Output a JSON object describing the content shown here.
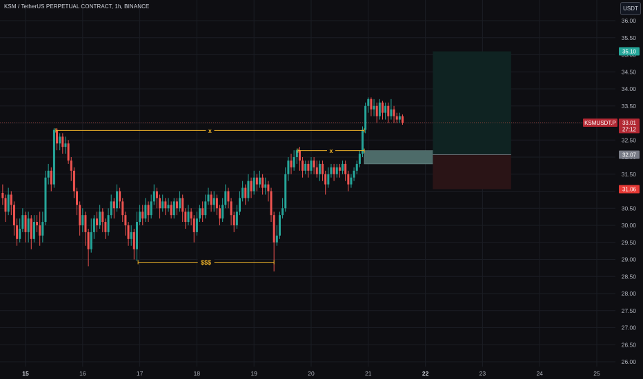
{
  "header": {
    "title": "KSM / TetherUS PERPETUAL CONTRACT, 1h, BINANCE",
    "currency_button": "USDT"
  },
  "colors": {
    "background": "#0e0e12",
    "up": "#26a69a",
    "down": "#ef5350",
    "annotation": "#f0b429",
    "grid": "#1b1d24",
    "axis_text": "#b2b5be",
    "profit_zone": "#0f2322",
    "loss_zone": "#2a1416",
    "current_price_line": "#e05a4e"
  },
  "chart_data": {
    "type": "candlestick",
    "title": "KSM / TetherUS PERPETUAL CONTRACT, 1h, BINANCE",
    "y_axis": {
      "min": 26.0,
      "max": 36.0,
      "ticks": [
        "26.00",
        "26.50",
        "27.00",
        "27.50",
        "28.00",
        "28.50",
        "29.00",
        "29.50",
        "30.00",
        "30.50",
        "31.00",
        "31.50",
        "32.00",
        "32.50",
        "33.00",
        "33.50",
        "34.00",
        "34.50",
        "35.00",
        "35.50",
        "36.00"
      ]
    },
    "x_axis": {
      "labels": [
        "15",
        "16",
        "17",
        "18",
        "19",
        "20",
        "21",
        "22",
        "23",
        "24",
        "25"
      ],
      "bold_labels": [
        "15",
        "22"
      ]
    },
    "price_labels": [
      {
        "name": "take-profit",
        "text": "35.10",
        "value": 35.1,
        "color": "#26a69a"
      },
      {
        "name": "symbol-last-price",
        "text": "KSMUSDT.P",
        "value": 33.01,
        "color": "#b22833"
      },
      {
        "name": "last-price",
        "text": "33.01",
        "value": 33.01,
        "color": "#b22833"
      },
      {
        "name": "countdown",
        "text": "27:12",
        "value": 32.82,
        "color": "#b22833"
      },
      {
        "name": "entry",
        "text": "32.07",
        "value": 32.07,
        "color": "#787b86"
      },
      {
        "name": "stop-loss",
        "text": "31.06",
        "value": 31.06,
        "color": "#e53935"
      }
    ],
    "annotations": [
      {
        "name": "equal-highs-left",
        "text": "x",
        "x_from": 15.53,
        "x_to": 20.93,
        "y": 32.78
      },
      {
        "name": "equal-highs-right",
        "text": "x",
        "x_from": 19.77,
        "x_to": 20.93,
        "y": 32.19
      },
      {
        "name": "liquidity-lows",
        "text": "$$$",
        "x_from": 16.97,
        "x_to": 19.35,
        "y": 28.92
      }
    ],
    "zones": [
      {
        "name": "fair-value-gap",
        "x_from": 20.93,
        "x_to": 22.9,
        "y_from": 31.8,
        "y_to": 32.19
      },
      {
        "name": "position-profit",
        "x_from": 22.13,
        "x_to": 23.5,
        "y_from": 32.07,
        "y_to": 35.1
      },
      {
        "name": "position-loss",
        "x_from": 22.13,
        "x_to": 23.5,
        "y_from": 31.06,
        "y_to": 32.07
      }
    ],
    "candles": [
      [
        14.6,
        30.95,
        30.8,
        31.2,
        30.6
      ],
      [
        14.65,
        30.8,
        30.4,
        30.9,
        30.1
      ],
      [
        14.7,
        30.4,
        30.9,
        31.1,
        30.3
      ],
      [
        14.75,
        30.9,
        30.6,
        31.0,
        30.3
      ],
      [
        14.8,
        30.6,
        30.0,
        30.7,
        29.7
      ],
      [
        14.85,
        30.0,
        29.6,
        30.2,
        29.4
      ],
      [
        14.9,
        29.6,
        29.9,
        30.2,
        29.5
      ],
      [
        14.95,
        29.9,
        30.3,
        30.5,
        29.8
      ],
      [
        15.0,
        30.3,
        29.8,
        30.4,
        29.5
      ],
      [
        15.05,
        29.8,
        30.2,
        30.4,
        29.5
      ],
      [
        15.1,
        30.2,
        29.6,
        30.3,
        29.3
      ],
      [
        15.15,
        29.6,
        30.1,
        30.3,
        29.5
      ],
      [
        15.2,
        30.1,
        30.0,
        30.3,
        29.8
      ],
      [
        15.25,
        30.0,
        29.7,
        30.4,
        29.4
      ],
      [
        15.3,
        29.7,
        30.1,
        30.4,
        29.5
      ],
      [
        15.35,
        30.1,
        31.4,
        31.6,
        30.0
      ],
      [
        15.4,
        31.4,
        31.6,
        31.8,
        31.2
      ],
      [
        15.45,
        31.6,
        31.2,
        31.7,
        31.0
      ],
      [
        15.5,
        31.2,
        32.8,
        32.85,
        31.1
      ],
      [
        15.55,
        32.8,
        32.4,
        32.85,
        32.2
      ],
      [
        15.6,
        32.4,
        32.6,
        32.7,
        32.2
      ],
      [
        15.65,
        32.6,
        32.3,
        32.7,
        32.1
      ],
      [
        15.7,
        32.3,
        32.4,
        32.6,
        32.1
      ],
      [
        15.75,
        32.4,
        31.9,
        32.5,
        31.8
      ],
      [
        15.8,
        31.9,
        31.6,
        32.0,
        31.3
      ],
      [
        15.85,
        31.6,
        31.0,
        31.7,
        30.8
      ],
      [
        15.9,
        31.0,
        30.6,
        31.1,
        30.3
      ],
      [
        15.95,
        30.6,
        30.0,
        30.7,
        29.7
      ],
      [
        16.0,
        30.0,
        30.3,
        30.5,
        29.8
      ],
      [
        16.05,
        30.3,
        29.8,
        30.4,
        29.4
      ],
      [
        16.1,
        29.8,
        29.3,
        29.9,
        28.8
      ],
      [
        16.15,
        29.3,
        29.8,
        30.2,
        29.2
      ],
      [
        16.2,
        29.8,
        30.2,
        30.3,
        29.6
      ],
      [
        16.25,
        30.2,
        30.0,
        30.4,
        29.8
      ],
      [
        16.3,
        30.0,
        30.4,
        30.6,
        29.9
      ],
      [
        16.35,
        30.4,
        30.1,
        30.5,
        29.8
      ],
      [
        16.4,
        30.1,
        29.8,
        30.2,
        29.6
      ],
      [
        16.45,
        29.8,
        30.3,
        30.5,
        29.7
      ],
      [
        16.5,
        30.3,
        30.7,
        30.9,
        30.2
      ],
      [
        16.55,
        30.7,
        30.5,
        30.8,
        30.2
      ],
      [
        16.6,
        30.5,
        31.0,
        31.2,
        30.4
      ],
      [
        16.65,
        31.0,
        30.7,
        31.1,
        30.5
      ],
      [
        16.7,
        30.7,
        30.3,
        30.8,
        30.1
      ],
      [
        16.75,
        30.3,
        30.0,
        30.4,
        29.7
      ],
      [
        16.8,
        30.0,
        29.6,
        30.1,
        29.4
      ],
      [
        16.85,
        29.6,
        29.8,
        30.0,
        29.4
      ],
      [
        16.9,
        29.8,
        29.3,
        29.9,
        29.0
      ],
      [
        16.95,
        29.3,
        30.1,
        30.4,
        28.95
      ],
      [
        17.0,
        30.1,
        30.4,
        30.6,
        30.0
      ],
      [
        17.05,
        30.4,
        30.2,
        30.6,
        30.0
      ],
      [
        17.1,
        30.2,
        30.6,
        30.8,
        30.1
      ],
      [
        17.15,
        30.6,
        30.3,
        30.7,
        30.1
      ],
      [
        17.2,
        30.3,
        30.7,
        30.9,
        30.2
      ],
      [
        17.25,
        30.7,
        31.0,
        31.2,
        30.6
      ],
      [
        17.3,
        31.0,
        30.8,
        31.1,
        30.5
      ],
      [
        17.35,
        30.8,
        30.5,
        30.9,
        30.2
      ],
      [
        17.4,
        30.5,
        30.7,
        30.9,
        30.4
      ],
      [
        17.45,
        30.7,
        30.5,
        30.8,
        30.3
      ],
      [
        17.5,
        30.5,
        30.6,
        30.8,
        30.4
      ],
      [
        17.55,
        30.6,
        30.3,
        30.7,
        30.2
      ],
      [
        17.6,
        30.3,
        30.7,
        30.8,
        30.2
      ],
      [
        17.65,
        30.7,
        30.5,
        30.8,
        30.3
      ],
      [
        17.7,
        30.5,
        30.8,
        31.0,
        30.4
      ],
      [
        17.75,
        30.8,
        30.4,
        30.9,
        30.1
      ],
      [
        17.8,
        30.4,
        30.1,
        30.5,
        29.9
      ],
      [
        17.85,
        30.1,
        30.4,
        30.6,
        30.0
      ],
      [
        17.9,
        30.4,
        30.2,
        30.5,
        30.0
      ],
      [
        17.95,
        30.2,
        29.8,
        30.3,
        29.5
      ],
      [
        18.0,
        29.8,
        30.2,
        30.4,
        29.7
      ],
      [
        18.05,
        30.2,
        30.5,
        30.6,
        30.1
      ],
      [
        18.1,
        30.5,
        30.3,
        30.7,
        30.1
      ],
      [
        18.15,
        30.3,
        30.7,
        30.9,
        30.2
      ],
      [
        18.2,
        30.7,
        30.9,
        31.1,
        30.6
      ],
      [
        18.25,
        30.9,
        30.6,
        31.0,
        30.4
      ],
      [
        18.3,
        30.6,
        30.8,
        31.0,
        30.4
      ],
      [
        18.35,
        30.8,
        30.5,
        30.9,
        30.3
      ],
      [
        18.4,
        30.5,
        30.2,
        30.6,
        30.0
      ],
      [
        18.45,
        30.2,
        30.6,
        30.8,
        30.1
      ],
      [
        18.5,
        30.6,
        31.0,
        31.2,
        30.5
      ],
      [
        18.55,
        31.0,
        30.7,
        31.1,
        30.5
      ],
      [
        18.6,
        30.7,
        30.3,
        30.8,
        30.0
      ],
      [
        18.65,
        30.3,
        30.0,
        30.4,
        29.8
      ],
      [
        18.7,
        30.0,
        30.4,
        30.6,
        29.9
      ],
      [
        18.75,
        30.4,
        30.8,
        31.0,
        30.3
      ],
      [
        18.8,
        30.8,
        31.1,
        31.3,
        30.7
      ],
      [
        18.85,
        31.1,
        30.8,
        31.2,
        30.6
      ],
      [
        18.9,
        30.8,
        31.3,
        31.5,
        30.7
      ],
      [
        18.95,
        31.3,
        31.0,
        31.4,
        30.8
      ],
      [
        19.0,
        31.0,
        31.4,
        31.6,
        30.9
      ],
      [
        19.05,
        31.4,
        31.2,
        31.5,
        31.0
      ],
      [
        19.1,
        31.2,
        31.4,
        31.6,
        31.1
      ],
      [
        19.15,
        31.4,
        31.1,
        31.5,
        30.9
      ],
      [
        19.2,
        31.1,
        31.2,
        31.4,
        30.9
      ],
      [
        19.25,
        31.2,
        31.0,
        31.3,
        30.7
      ],
      [
        19.3,
        31.0,
        30.3,
        31.1,
        30.1
      ],
      [
        19.35,
        30.3,
        29.5,
        30.4,
        28.65
      ],
      [
        19.4,
        29.5,
        29.7,
        30.0,
        29.4
      ],
      [
        19.45,
        29.7,
        30.3,
        30.4,
        29.6
      ],
      [
        19.5,
        30.3,
        30.5,
        30.8,
        30.2
      ],
      [
        19.55,
        30.5,
        31.5,
        31.7,
        30.4
      ],
      [
        19.6,
        31.5,
        31.9,
        32.0,
        31.3
      ],
      [
        19.65,
        31.9,
        31.7,
        32.1,
        31.5
      ],
      [
        19.7,
        31.7,
        32.0,
        32.2,
        31.6
      ],
      [
        19.75,
        32.0,
        32.2,
        32.25,
        31.8
      ],
      [
        19.8,
        32.2,
        31.9,
        32.3,
        31.6
      ],
      [
        19.85,
        31.9,
        31.6,
        32.0,
        31.4
      ],
      [
        19.9,
        31.6,
        31.8,
        31.9,
        31.5
      ],
      [
        19.95,
        31.8,
        31.6,
        31.9,
        31.4
      ],
      [
        20.0,
        31.6,
        31.9,
        32.0,
        31.5
      ],
      [
        20.05,
        31.9,
        31.7,
        32.0,
        31.5
      ],
      [
        20.1,
        31.7,
        31.5,
        31.9,
        31.4
      ],
      [
        20.15,
        31.5,
        31.8,
        31.9,
        31.3
      ],
      [
        20.2,
        31.8,
        31.5,
        31.9,
        31.3
      ],
      [
        20.25,
        31.5,
        31.2,
        31.6,
        30.9
      ],
      [
        20.3,
        31.2,
        31.5,
        31.7,
        31.1
      ],
      [
        20.35,
        31.5,
        31.7,
        31.8,
        31.4
      ],
      [
        20.4,
        31.7,
        31.5,
        31.8,
        31.3
      ],
      [
        20.45,
        31.5,
        31.7,
        31.8,
        31.4
      ],
      [
        20.5,
        31.7,
        31.6,
        31.8,
        31.4
      ],
      [
        20.55,
        31.6,
        31.8,
        31.9,
        31.5
      ],
      [
        20.6,
        31.8,
        31.5,
        31.9,
        31.3
      ],
      [
        20.65,
        31.5,
        31.2,
        31.6,
        31.0
      ],
      [
        20.7,
        31.2,
        31.4,
        31.5,
        31.1
      ],
      [
        20.75,
        31.4,
        31.6,
        31.7,
        31.3
      ],
      [
        20.8,
        31.6,
        31.8,
        31.9,
        31.5
      ],
      [
        20.85,
        31.8,
        32.1,
        32.2,
        31.7
      ],
      [
        20.9,
        32.1,
        32.8,
        32.9,
        32.0
      ],
      [
        20.95,
        32.8,
        33.5,
        33.6,
        32.7
      ],
      [
        21.0,
        33.5,
        33.7,
        33.75,
        33.3
      ],
      [
        21.05,
        33.7,
        33.4,
        33.75,
        33.2
      ],
      [
        21.1,
        33.4,
        33.5,
        33.7,
        33.2
      ],
      [
        21.15,
        33.5,
        33.2,
        33.6,
        33.0
      ],
      [
        21.2,
        33.2,
        33.6,
        33.7,
        33.1
      ],
      [
        21.25,
        33.6,
        33.3,
        33.65,
        33.1
      ],
      [
        21.3,
        33.3,
        33.5,
        33.6,
        33.1
      ],
      [
        21.35,
        33.5,
        33.2,
        33.6,
        33.0
      ],
      [
        21.4,
        33.2,
        33.4,
        33.7,
        33.1
      ],
      [
        21.45,
        33.4,
        33.2,
        33.5,
        33.0
      ],
      [
        21.5,
        33.2,
        33.1,
        33.3,
        33.0
      ],
      [
        21.55,
        33.1,
        33.2,
        33.3,
        33.0
      ],
      [
        21.6,
        33.2,
        33.01,
        33.25,
        32.95
      ]
    ]
  }
}
